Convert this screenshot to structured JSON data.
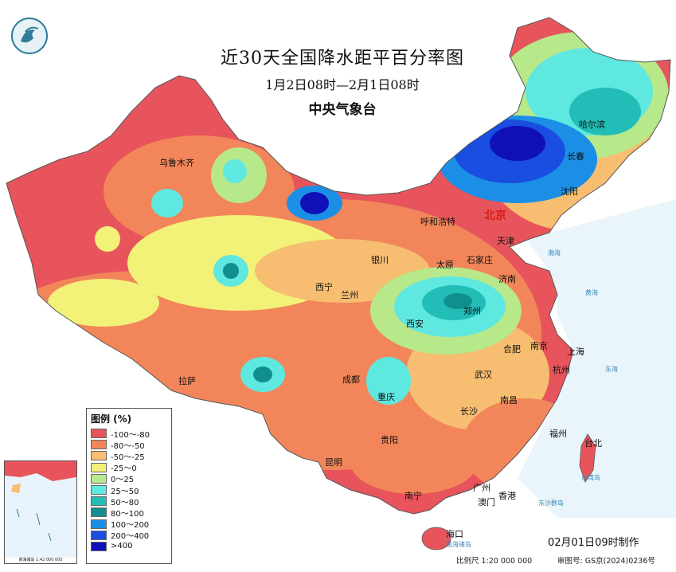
{
  "title": "近30天全国降水距平百分率图",
  "subtitle": "1月2日08时—2月1日08时",
  "organization": "中央气象台",
  "legend": {
    "title": "图例 (%)",
    "items": [
      {
        "label": "-100～-80",
        "color": "#e8545b"
      },
      {
        "label": "-80～-50",
        "color": "#f2865a"
      },
      {
        "label": "-50～-25",
        "color": "#f7bd70"
      },
      {
        "label": "-25～0",
        "color": "#f2f178"
      },
      {
        "label": "0～25",
        "color": "#b7e88a"
      },
      {
        "label": "25～50",
        "color": "#5fe8e0"
      },
      {
        "label": "50～80",
        "color": "#22bdb7"
      },
      {
        "label": "80～100",
        "color": "#118f8f"
      },
      {
        "label": "100～200",
        "color": "#1b8fe6"
      },
      {
        "label": "200～400",
        "color": "#1a4ee0"
      },
      {
        "label": ">400",
        "color": "#1010b8"
      }
    ]
  },
  "cities": [
    {
      "name": "乌鲁木齐"
    },
    {
      "name": "北京"
    },
    {
      "name": "哈尔滨"
    },
    {
      "name": "长春"
    },
    {
      "name": "沈阳"
    },
    {
      "name": "呼和浩特"
    },
    {
      "name": "天津"
    },
    {
      "name": "银川"
    },
    {
      "name": "太原"
    },
    {
      "name": "石家庄"
    },
    {
      "name": "济南"
    },
    {
      "name": "西宁"
    },
    {
      "name": "兰州"
    },
    {
      "name": "郑州"
    },
    {
      "name": "西安"
    },
    {
      "name": "合肥"
    },
    {
      "name": "南京"
    },
    {
      "name": "上海"
    },
    {
      "name": "杭州"
    },
    {
      "name": "武汉"
    },
    {
      "name": "成都"
    },
    {
      "name": "拉萨"
    },
    {
      "name": "重庆"
    },
    {
      "name": "南昌"
    },
    {
      "name": "长沙"
    },
    {
      "name": "福州"
    },
    {
      "name": "台北"
    },
    {
      "name": "贵阳"
    },
    {
      "name": "昆明"
    },
    {
      "name": "南宁"
    },
    {
      "name": "广州"
    },
    {
      "name": "香港"
    },
    {
      "name": "澳门"
    },
    {
      "name": "海口"
    }
  ],
  "seas": [
    "渤海",
    "黄海",
    "东海",
    "台湾岛",
    "东沙群岛",
    "南海诸岛"
  ],
  "inset": {
    "caption": "南海诸岛\n1:42 000 000"
  },
  "footer": {
    "date": "02月01日09时制作",
    "scale": "比例尺 1:20 000 000",
    "review": "审图号: GS京(2024)0236号"
  }
}
